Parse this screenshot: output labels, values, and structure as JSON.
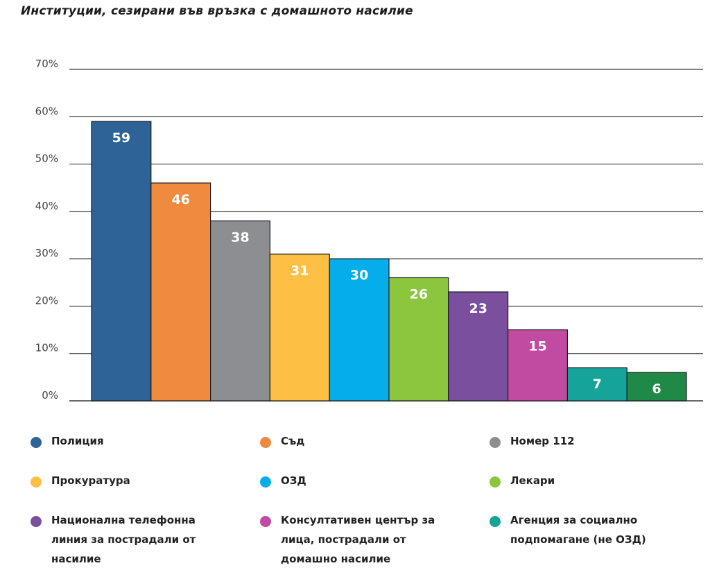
{
  "title": "Институции, сезирани във връзка с домашното насилие",
  "chart_data": {
    "type": "bar",
    "title": "Институции, сезирани във връзка с домашното насилие",
    "ylim": [
      0,
      70
    ],
    "y_ticks": [
      0,
      10,
      20,
      30,
      40,
      50,
      60,
      70
    ],
    "y_tick_labels": [
      "0%",
      "10%",
      "20%",
      "30%",
      "40%",
      "50%",
      "60%",
      "70%"
    ],
    "grid": true,
    "legend_position": "bottom",
    "categories": [
      "Полиция",
      "Съд",
      "Номер 112",
      "Прокуратура",
      "ОЗД",
      "Лекари",
      "Национална телефонна линия за пострадали от насилие",
      "Консултативен център за лица, пострадали от домашно насилие",
      "Агенция за социално подпомагане (не ОЗД)",
      ""
    ],
    "values": [
      59,
      46,
      38,
      31,
      30,
      26,
      23,
      15,
      7,
      6
    ],
    "data_labels": [
      "59",
      "46",
      "38",
      "31",
      "30",
      "26",
      "23",
      "15",
      "7",
      "6"
    ],
    "colors": [
      "#2e6398",
      "#f08a3e",
      "#8d8e91",
      "#fdc045",
      "#05aeea",
      "#8cc63f",
      "#7a509e",
      "#c14ba1",
      "#16a49a",
      "#1f8a48"
    ]
  },
  "legend": [
    {
      "label": "Полиция",
      "color": "#2e6398"
    },
    {
      "label": "Съд",
      "color": "#f08a3e"
    },
    {
      "label": "Номер 112",
      "color": "#8d8e91"
    },
    {
      "label": "Прокуратура",
      "color": "#fdc045"
    },
    {
      "label": "ОЗД",
      "color": "#05aeea"
    },
    {
      "label": "Лекари",
      "color": "#8cc63f"
    },
    {
      "label": "Национална телефонна линия за пострадали от насилие",
      "color": "#7a509e"
    },
    {
      "label": "Консултативен център за лица, пострадали от домашно насилие",
      "color": "#c14ba1"
    },
    {
      "label": "Агенция за социално подпомагане (не ОЗД)",
      "color": "#16a49a"
    }
  ]
}
